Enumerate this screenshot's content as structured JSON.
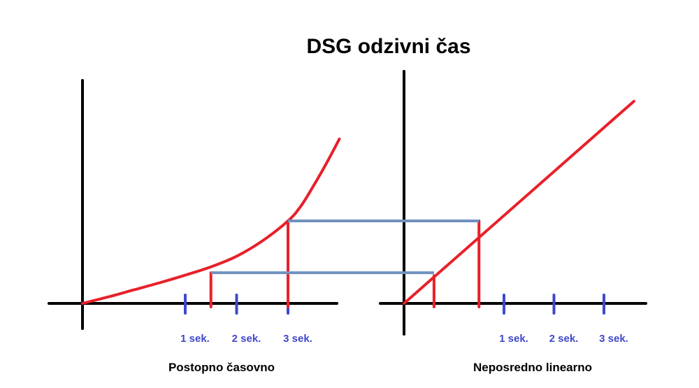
{
  "title": "DSG odzivni čas",
  "colors": {
    "axis": "#000000",
    "curve": "#e8202a",
    "tick": "#3f48cc",
    "connector": "#7092be"
  },
  "chart_data": [
    {
      "type": "line",
      "caption": "Postopno časovno",
      "x_tick_labels": [
        "1 sek.",
        "2 sek.",
        "3 sek."
      ],
      "x_ticks": [
        1,
        2,
        3
      ],
      "xlim": [
        -1,
        4
      ],
      "ylim": [
        0,
        3
      ],
      "series": [
        {
          "x": [
            -1,
            -0.5,
            0,
            0.5,
            1,
            1.5,
            2,
            2.5,
            3,
            3.25,
            3.5,
            3.75,
            4
          ],
          "y": [
            0,
            0.11,
            0.23,
            0.35,
            0.48,
            0.62,
            0.8,
            1.06,
            1.4,
            1.65,
            2.0,
            2.38,
            2.79
          ]
        }
      ],
      "markers": [
        {
          "x": 1.5,
          "y": 0.52
        },
        {
          "x": 3,
          "y": 1.4
        }
      ]
    },
    {
      "type": "line",
      "caption": "Neposredno linearno",
      "x_tick_labels": [
        "1 sek.",
        "2 sek.",
        "3 sek."
      ],
      "x_ticks": [
        1,
        2,
        3
      ],
      "xlim": [
        -1,
        4
      ],
      "ylim": [
        0,
        3
      ],
      "series": [
        {
          "x": [
            -1,
            3.6
          ],
          "y": [
            0,
            3.43
          ]
        }
      ],
      "markers": [
        {
          "x": -0.4,
          "y": 0.47
        },
        {
          "x": 0.5,
          "y": 1.4
        }
      ]
    }
  ]
}
